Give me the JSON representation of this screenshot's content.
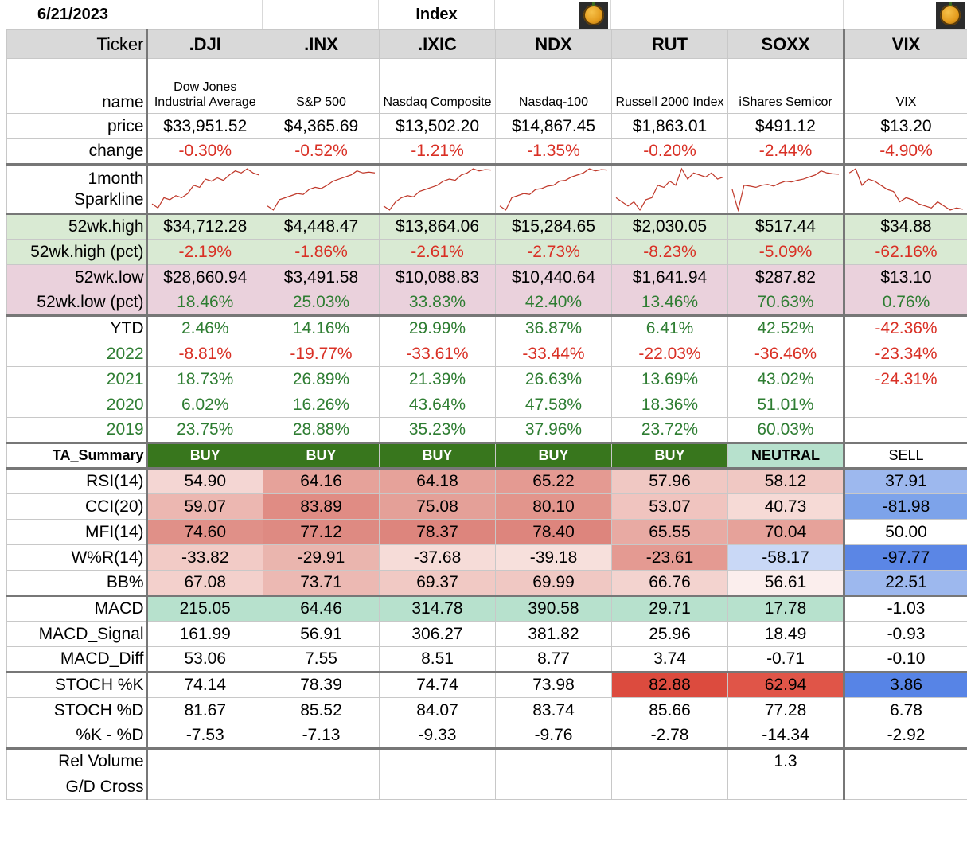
{
  "top": {
    "date": "6/21/2023",
    "title": "Index"
  },
  "colors": {
    "neg": "#d93025",
    "pos": "#2e7d32",
    "buy": "#38761d",
    "neutral": "#b7e1cd"
  },
  "tickers": [
    ".DJI",
    ".INX",
    ".IXIC",
    "NDX",
    "RUT",
    "SOXX",
    "VIX"
  ],
  "labels": {
    "ticker": "Ticker",
    "name": "name",
    "price": "price",
    "change": "change",
    "spark1": "1month",
    "spark2": "Sparkline",
    "hi": "52wk.high",
    "hipct": "52wk.high (pct)",
    "lo": "52wk.low",
    "lopct": "52wk.low (pct)",
    "ytd": "YTD",
    "y2022": "2022",
    "y2021": "2021",
    "y2020": "2020",
    "y2019": "2019",
    "ta": "TA_Summary",
    "rsi": "RSI(14)",
    "cci": "CCI(20)",
    "mfi": "MFI(14)",
    "wr": "W%R(14)",
    "bb": "BB%",
    "macd": "MACD",
    "macds": "MACD_Signal",
    "macdd": "MACD_Diff",
    "sk": "STOCH %K",
    "sd": "STOCH %D",
    "kd": "%K - %D",
    "rv": "Rel Volume",
    "gd": "G/D Cross"
  },
  "names": [
    "Dow Jones Industrial Average",
    "S&P 500",
    "Nasdaq Composite",
    "Nasdaq-100",
    "Russell 2000 Index",
    "iShares Semicor",
    "VIX"
  ],
  "price": [
    "$33,951.52",
    "$4,365.69",
    "$13,502.20",
    "$14,867.45",
    "$1,863.01",
    "$491.12",
    "$13.20"
  ],
  "change": [
    "-0.30%",
    "-0.52%",
    "-1.21%",
    "-1.35%",
    "-0.20%",
    "-2.44%",
    "-4.90%"
  ],
  "sparklines": [
    [
      0.15,
      0.05,
      0.3,
      0.25,
      0.35,
      0.3,
      0.4,
      0.6,
      0.55,
      0.75,
      0.7,
      0.78,
      0.72,
      0.85,
      0.95,
      0.9,
      1.0,
      0.9,
      0.85
    ],
    [
      0.1,
      0.0,
      0.25,
      0.3,
      0.35,
      0.4,
      0.38,
      0.5,
      0.55,
      0.52,
      0.6,
      0.7,
      0.75,
      0.8,
      0.85,
      0.95,
      0.9,
      0.92,
      0.9
    ],
    [
      0.1,
      0.0,
      0.2,
      0.3,
      0.35,
      0.32,
      0.45,
      0.5,
      0.55,
      0.6,
      0.7,
      0.75,
      0.72,
      0.85,
      0.9,
      1.0,
      0.95,
      0.98,
      0.97
    ],
    [
      0.1,
      0.0,
      0.3,
      0.35,
      0.4,
      0.38,
      0.5,
      0.52,
      0.58,
      0.6,
      0.7,
      0.72,
      0.8,
      0.85,
      0.9,
      1.0,
      0.95,
      0.98,
      0.97
    ],
    [
      0.3,
      0.2,
      0.1,
      0.2,
      0.0,
      0.25,
      0.3,
      0.6,
      0.55,
      0.7,
      0.6,
      1.0,
      0.75,
      0.9,
      0.85,
      0.8,
      0.9,
      0.75,
      0.8
    ],
    [
      0.5,
      0.0,
      0.6,
      0.58,
      0.55,
      0.6,
      0.62,
      0.58,
      0.65,
      0.7,
      0.68,
      0.72,
      0.75,
      0.8,
      0.85,
      0.95,
      0.9,
      0.88,
      0.87
    ],
    [
      0.9,
      1.0,
      0.6,
      0.75,
      0.7,
      0.6,
      0.5,
      0.45,
      0.2,
      0.3,
      0.25,
      0.15,
      0.1,
      0.05,
      0.2,
      0.1,
      0.0,
      0.05,
      0.02
    ]
  ],
  "hi": [
    "$34,712.28",
    "$4,448.47",
    "$13,864.06",
    "$15,284.65",
    "$2,030.05",
    "$517.44",
    "$34.88"
  ],
  "hipct": [
    "-2.19%",
    "-1.86%",
    "-2.61%",
    "-2.73%",
    "-8.23%",
    "-5.09%",
    "-62.16%"
  ],
  "lo": [
    "$28,660.94",
    "$3,491.58",
    "$10,088.83",
    "$10,440.64",
    "$1,641.94",
    "$287.82",
    "$13.10"
  ],
  "lopct": [
    "18.46%",
    "25.03%",
    "33.83%",
    "42.40%",
    "13.46%",
    "70.63%",
    "0.76%"
  ],
  "ytd": [
    "2.46%",
    "14.16%",
    "29.99%",
    "36.87%",
    "6.41%",
    "42.52%",
    "-42.36%"
  ],
  "y2022": [
    "-8.81%",
    "-19.77%",
    "-33.61%",
    "-33.44%",
    "-22.03%",
    "-36.46%",
    "-23.34%"
  ],
  "y2021": [
    "18.73%",
    "26.89%",
    "21.39%",
    "26.63%",
    "13.69%",
    "43.02%",
    "-24.31%"
  ],
  "y2020": [
    "6.02%",
    "16.26%",
    "43.64%",
    "47.58%",
    "18.36%",
    "51.01%",
    ""
  ],
  "y2019": [
    "23.75%",
    "28.88%",
    "35.23%",
    "37.96%",
    "23.72%",
    "60.03%",
    ""
  ],
  "ta": [
    "BUY",
    "BUY",
    "BUY",
    "BUY",
    "BUY",
    "NEUTRAL",
    "SELL"
  ],
  "rsi": [
    "54.90",
    "64.16",
    "64.18",
    "65.22",
    "57.96",
    "58.12",
    "37.91"
  ],
  "cci": [
    "59.07",
    "83.89",
    "75.08",
    "80.10",
    "53.07",
    "40.73",
    "-81.98"
  ],
  "mfi": [
    "74.60",
    "77.12",
    "78.37",
    "78.40",
    "65.55",
    "70.04",
    "50.00"
  ],
  "wr": [
    "-33.82",
    "-29.91",
    "-37.68",
    "-39.18",
    "-23.61",
    "-58.17",
    "-97.77"
  ],
  "bb": [
    "67.08",
    "73.71",
    "69.37",
    "69.99",
    "66.76",
    "56.61",
    "22.51"
  ],
  "macd": [
    "215.05",
    "64.46",
    "314.78",
    "390.58",
    "29.71",
    "17.78",
    "-1.03"
  ],
  "macds": [
    "161.99",
    "56.91",
    "306.27",
    "381.82",
    "25.96",
    "18.49",
    "-0.93"
  ],
  "macdd": [
    "53.06",
    "7.55",
    "8.51",
    "8.77",
    "3.74",
    "-0.71",
    "-0.10"
  ],
  "sk": [
    "74.14",
    "78.39",
    "74.74",
    "73.98",
    "82.88",
    "62.94",
    "3.86"
  ],
  "sd": [
    "81.67",
    "85.52",
    "84.07",
    "83.74",
    "85.66",
    "77.28",
    "6.78"
  ],
  "kd": [
    "-7.53",
    "-7.13",
    "-9.33",
    "-9.76",
    "-2.78",
    "-14.34",
    "-2.92"
  ],
  "rv": [
    "",
    "",
    "",
    "",
    "",
    "1.3",
    ""
  ],
  "gd": [
    "",
    "",
    "",
    "",
    "",
    "",
    ""
  ],
  "heat": {
    "rsi": [
      "#f4d6d3",
      "#e6a29a",
      "#e6a29a",
      "#e49a92",
      "#f0c8c3",
      "#f0c8c3",
      "#9db8ee"
    ],
    "cci": [
      "#ecb7b1",
      "#e08c84",
      "#e4a098",
      "#e2958c",
      "#f0c4bf",
      "#f6dad6",
      "#7da3ea"
    ],
    "mfi": [
      "#e09088",
      "#de8a82",
      "#dd857d",
      "#dd857d",
      "#e8aaa3",
      "#e6a29a",
      "#ffffff"
    ],
    "wr": [
      "#f2cbc6",
      "#eab5ae",
      "#f6dcd8",
      "#f7e0dc",
      "#e49a92",
      "#c9d8f6",
      "#5b86e5"
    ],
    "bb": [
      "#f3d0cc",
      "#ecb9b3",
      "#f1c9c4",
      "#f0c8c3",
      "#f3d3cf",
      "#fbeeed",
      "#9db8ee"
    ],
    "sk": [
      "#ffffff",
      "#ffffff",
      "#ffffff",
      "#ffffff",
      "#dc4b3e",
      "#e05548",
      "#5784e6"
    ]
  }
}
